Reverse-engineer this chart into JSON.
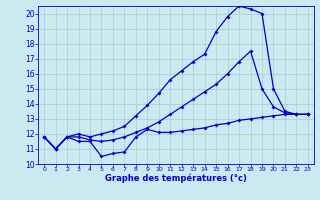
{
  "xlabel": "Graphe des températures (°c)",
  "bg_color": "#cce8f0",
  "line_color": "#0000cc",
  "grid_color": "#b0c8d0",
  "xlim": [
    -0.5,
    23.5
  ],
  "ylim": [
    10,
    20.5
  ],
  "yticks": [
    10,
    11,
    12,
    13,
    14,
    15,
    16,
    17,
    18,
    19,
    20
  ],
  "xticks": [
    0,
    1,
    2,
    3,
    4,
    5,
    6,
    7,
    8,
    9,
    10,
    11,
    12,
    13,
    14,
    15,
    16,
    17,
    18,
    19,
    20,
    21,
    22,
    23
  ],
  "series1_x": [
    0,
    1,
    2,
    3,
    4,
    5,
    6,
    7,
    8,
    9,
    10,
    11,
    12,
    13,
    14,
    15,
    16,
    17,
    18,
    19,
    20,
    21,
    22,
    23
  ],
  "series1_y": [
    11.8,
    11.0,
    11.8,
    11.5,
    11.5,
    10.5,
    10.7,
    10.8,
    11.8,
    12.3,
    12.1,
    12.1,
    12.2,
    12.3,
    12.4,
    12.6,
    12.7,
    12.9,
    13.0,
    13.1,
    13.2,
    13.3,
    13.3,
    13.3
  ],
  "series2_x": [
    0,
    1,
    2,
    3,
    4,
    5,
    6,
    7,
    8,
    9,
    10,
    11,
    12,
    13,
    14,
    15,
    16,
    17,
    18,
    19,
    20,
    21,
    22,
    23
  ],
  "series2_y": [
    11.8,
    11.0,
    11.8,
    11.8,
    11.6,
    11.5,
    11.6,
    11.8,
    12.1,
    12.4,
    12.8,
    13.3,
    13.8,
    14.3,
    14.8,
    15.3,
    16.0,
    16.8,
    17.5,
    15.0,
    13.8,
    13.4,
    13.3,
    13.3
  ],
  "series3_x": [
    0,
    1,
    2,
    3,
    4,
    5,
    6,
    7,
    8,
    9,
    10,
    11,
    12,
    13,
    14,
    15,
    16,
    17,
    18,
    19,
    20,
    21,
    22,
    23
  ],
  "series3_y": [
    11.8,
    11.0,
    11.8,
    12.0,
    11.8,
    12.0,
    12.2,
    12.5,
    13.2,
    13.9,
    14.7,
    15.6,
    16.2,
    16.8,
    17.3,
    18.8,
    19.8,
    20.5,
    20.3,
    20.0,
    15.0,
    13.5,
    13.3,
    13.3
  ],
  "marker_size": 2.0,
  "line_width": 0.9
}
